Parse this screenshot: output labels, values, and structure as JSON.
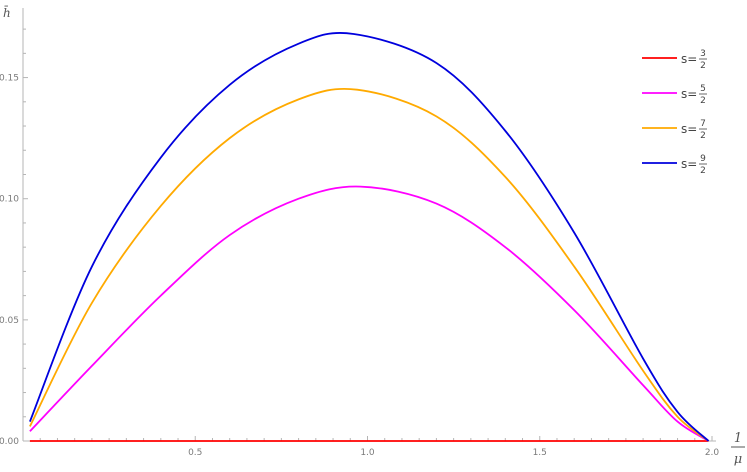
{
  "chart_data": {
    "type": "line",
    "xlabel": {
      "numerator": "1",
      "denominator": "μ"
    },
    "ylabel": "h̄",
    "xlim": [
      0,
      2.0
    ],
    "ylim": [
      0,
      0.175
    ],
    "x_ticks": [
      {
        "value": 0.5,
        "label": "0.5"
      },
      {
        "value": 1.0,
        "label": "1.0"
      },
      {
        "value": 1.5,
        "label": "1.5"
      },
      {
        "value": 2.0,
        "label": "2.0"
      }
    ],
    "y_ticks": [
      {
        "value": 0.0,
        "label": "0.00"
      },
      {
        "value": 0.05,
        "label": "0.05"
      },
      {
        "value": 0.1,
        "label": "0.10"
      },
      {
        "value": 0.15,
        "label": "0.15"
      }
    ],
    "grid": false,
    "legend_position": "top-right",
    "series": [
      {
        "legend_prefix": "s=",
        "numerator": "3",
        "denominator": "2",
        "color": "#ff0000",
        "x": [
          0.02,
          0.2,
          0.4,
          0.6,
          0.8,
          0.97,
          1.2,
          1.4,
          1.6,
          1.8,
          1.9,
          1.99
        ],
        "y": [
          0.0,
          0.0,
          0.0,
          0.0,
          0.0,
          0.0,
          0.0,
          0.0,
          0.0,
          0.0,
          0.0,
          0.0
        ]
      },
      {
        "legend_prefix": "s=",
        "numerator": "5",
        "denominator": "2",
        "color": "#ff00ff",
        "x": [
          0.02,
          0.2,
          0.4,
          0.6,
          0.8,
          0.98,
          1.2,
          1.4,
          1.6,
          1.8,
          1.9,
          1.99
        ],
        "y": [
          0.004,
          0.031,
          0.06,
          0.085,
          0.1,
          0.105,
          0.098,
          0.08,
          0.054,
          0.023,
          0.008,
          0.0
        ]
      },
      {
        "legend_prefix": "s=",
        "numerator": "7",
        "denominator": "2",
        "color": "#ffaa00",
        "x": [
          0.02,
          0.2,
          0.4,
          0.6,
          0.8,
          0.97,
          1.2,
          1.4,
          1.6,
          1.8,
          1.9,
          1.99
        ],
        "y": [
          0.006,
          0.057,
          0.097,
          0.125,
          0.141,
          0.145,
          0.134,
          0.109,
          0.072,
          0.029,
          0.01,
          0.0
        ]
      },
      {
        "legend_prefix": "s=",
        "numerator": "9",
        "denominator": "2",
        "color": "#0000dd",
        "x": [
          0.02,
          0.2,
          0.4,
          0.6,
          0.8,
          0.96,
          1.2,
          1.4,
          1.6,
          1.8,
          1.9,
          1.99
        ],
        "y": [
          0.008,
          0.072,
          0.117,
          0.147,
          0.164,
          0.168,
          0.156,
          0.128,
          0.086,
          0.034,
          0.012,
          0.0
        ]
      }
    ]
  }
}
